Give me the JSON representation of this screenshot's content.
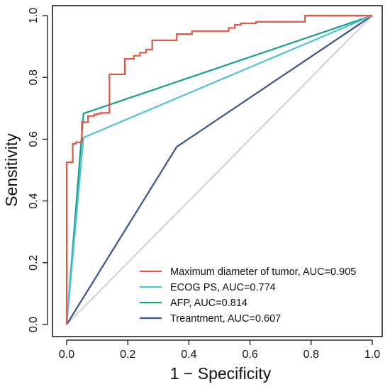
{
  "chart_data": {
    "type": "line",
    "xlabel": "1 − Specificity",
    "ylabel": "Sensitivity",
    "xlim": [
      0,
      1
    ],
    "ylim": [
      0,
      1
    ],
    "x_ticks": [
      "0.0",
      "0.2",
      "0.4",
      "0.6",
      "0.8",
      "1.0"
    ],
    "y_ticks": [
      "0.0",
      "0.2",
      "0.4",
      "0.6",
      "0.8",
      "1.0"
    ],
    "grid": false,
    "legend_position": "bottom-right",
    "reference_line": {
      "x": [
        0,
        1
      ],
      "y": [
        0,
        1
      ],
      "color": "#b8b8b8"
    },
    "series": [
      {
        "name": "Maximum diameter of tumor, AUC=0.905",
        "color": "#e8533f",
        "x": [
          0,
          0,
          0.02,
          0.02,
          0.03,
          0.03,
          0.05,
          0.05,
          0.07,
          0.07,
          0.09,
          0.09,
          0.1,
          0.1,
          0.11,
          0.11,
          0.14,
          0.14,
          0.19,
          0.19,
          0.22,
          0.22,
          0.24,
          0.24,
          0.26,
          0.26,
          0.28,
          0.28,
          0.36,
          0.36,
          0.41,
          0.41,
          0.53,
          0.53,
          0.55,
          0.55,
          0.57,
          0.57,
          0.62,
          0.62,
          0.78,
          0.78,
          1.0
        ],
        "y": [
          0,
          0.525,
          0.525,
          0.585,
          0.585,
          0.59,
          0.59,
          0.655,
          0.655,
          0.675,
          0.675,
          0.68,
          0.68,
          0.682,
          0.682,
          0.685,
          0.685,
          0.81,
          0.81,
          0.86,
          0.86,
          0.87,
          0.87,
          0.88,
          0.88,
          0.89,
          0.89,
          0.92,
          0.92,
          0.94,
          0.94,
          0.95,
          0.95,
          0.96,
          0.96,
          0.97,
          0.97,
          0.975,
          0.975,
          0.98,
          0.98,
          1.0,
          1.0
        ]
      },
      {
        "name": "ECOG PS, AUC=0.774",
        "color": "#4fc1d6",
        "x": [
          0,
          0.055,
          1
        ],
        "y": [
          0,
          0.605,
          1
        ]
      },
      {
        "name": "AFP, AUC=0.814",
        "color": "#14a08a",
        "x": [
          0,
          0.055,
          1
        ],
        "y": [
          0,
          0.683,
          1
        ]
      },
      {
        "name": "Treantment, AUC=0.607",
        "color": "#3a5490",
        "x": [
          0,
          0.36,
          1
        ],
        "y": [
          0,
          0.575,
          1
        ]
      }
    ]
  }
}
